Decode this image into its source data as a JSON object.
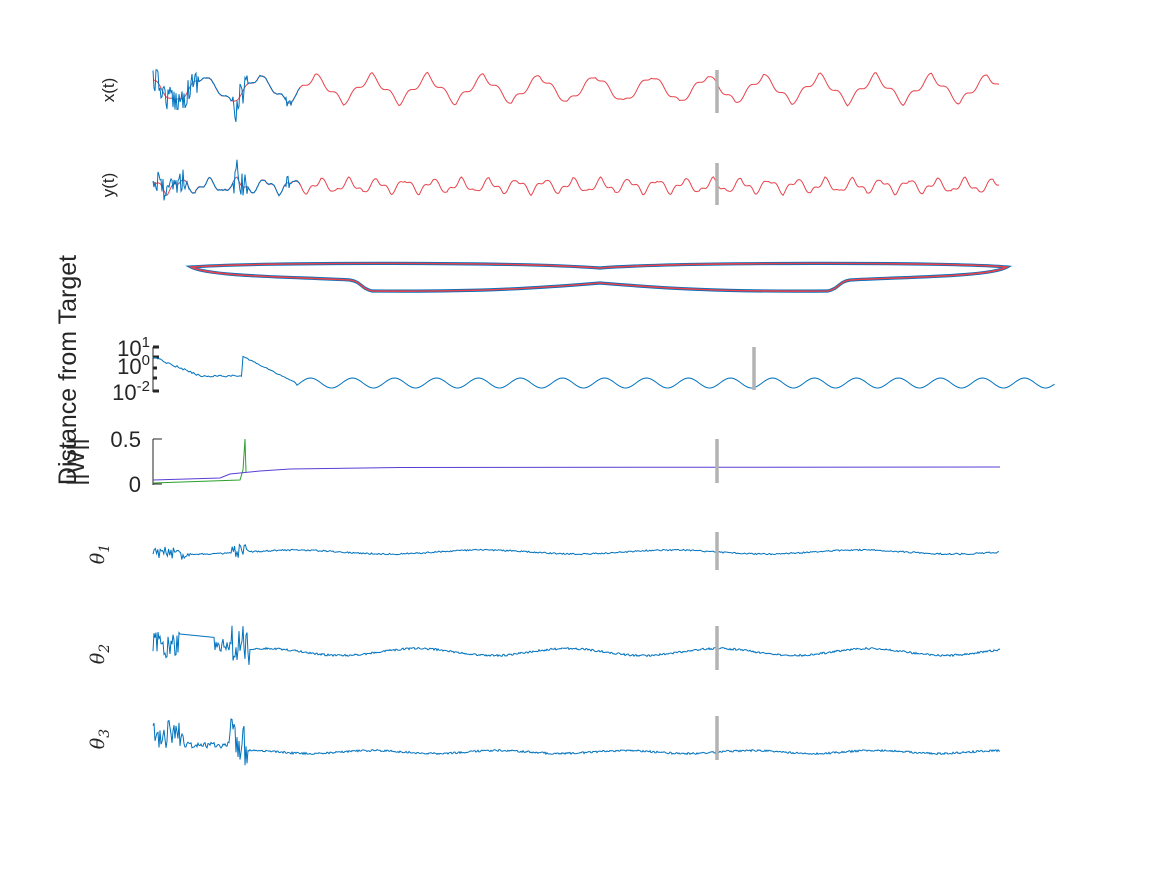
{
  "chart_data": [
    {
      "type": "line",
      "ylabel": "x(t)",
      "series": [
        {
          "color": "#0072bd",
          "kind": "fit"
        },
        {
          "color": "#e8434c",
          "kind": "target"
        }
      ],
      "grid": false,
      "marker_color": "#b3b3b3"
    },
    {
      "type": "line",
      "ylabel": "y(t)",
      "series": [
        {
          "color": "#0072bd",
          "kind": "fit"
        },
        {
          "color": "#e8434c",
          "kind": "target"
        }
      ],
      "grid": false,
      "marker_color": "#b3b3b3"
    },
    {
      "type": "line",
      "ylabel": "",
      "series": [
        {
          "color": "#0072bd",
          "kind": "trajectory"
        },
        {
          "color": "#e8434c",
          "kind": "target"
        }
      ],
      "grid": false
    },
    {
      "type": "line",
      "ylabel": "Distance from Target",
      "yscale": "log",
      "yticks": [
        {
          "base": "10",
          "exp": "1"
        },
        {
          "base": "10",
          "exp": "0"
        },
        {
          "base": "10",
          "exp": "-2"
        }
      ],
      "series": [
        {
          "color": "#0072bd"
        }
      ],
      "grid": false,
      "marker_color": "#b3b3b3"
    },
    {
      "type": "line",
      "ylabel": "||W||",
      "yticks": [
        "0.5",
        "0"
      ],
      "ylim": [
        0,
        0.5
      ],
      "series": [
        {
          "color": "#2ca02c"
        },
        {
          "color": "#5a3dd6"
        }
      ],
      "grid": false,
      "marker_color": "#b3b3b3"
    },
    {
      "type": "line",
      "ylabel": {
        "base": "θ",
        "sub": "1"
      },
      "series": [
        {
          "color": "#0072bd"
        }
      ],
      "grid": false,
      "marker_color": "#b3b3b3"
    },
    {
      "type": "line",
      "ylabel": {
        "base": "θ",
        "sub": "2"
      },
      "series": [
        {
          "color": "#0072bd"
        }
      ],
      "grid": false,
      "marker_color": "#b3b3b3"
    },
    {
      "type": "line",
      "ylabel": {
        "base": "θ",
        "sub": "3"
      },
      "series": [
        {
          "color": "#0072bd"
        }
      ],
      "grid": false,
      "marker_color": "#b3b3b3"
    }
  ]
}
